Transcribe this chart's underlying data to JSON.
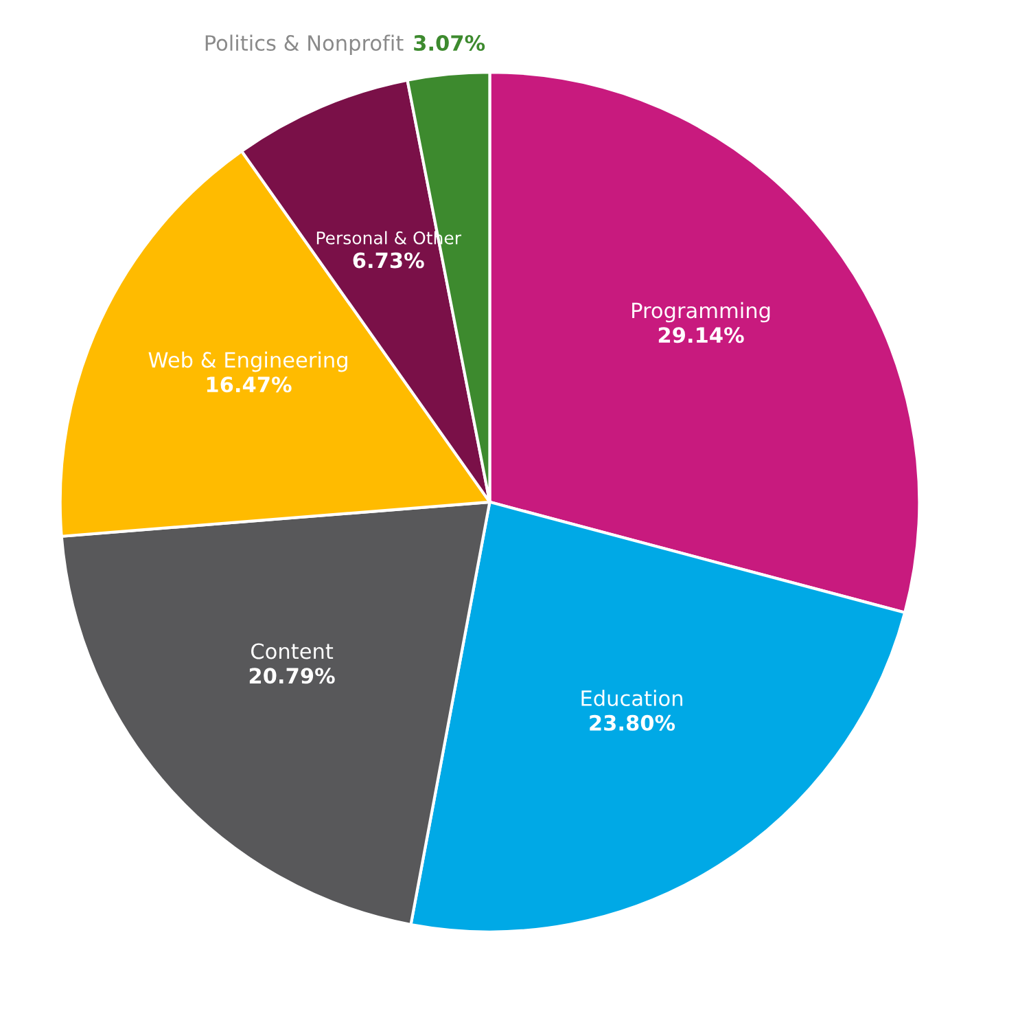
{
  "chart_data": {
    "type": "pie",
    "categories": [
      "Programming",
      "Education",
      "Content",
      "Web & Engineering",
      "Personal & Other",
      "Politics & Nonprofit"
    ],
    "values": [
      29.14,
      23.8,
      20.79,
      16.47,
      6.73,
      3.07
    ],
    "value_labels": [
      "29.14%",
      "23.80%",
      "20.79%",
      "16.47%",
      "6.73%",
      "3.07%"
    ],
    "colors": [
      "#c81a7e",
      "#00a9e6",
      "#58585a",
      "#ffbb00",
      "#7a1048",
      "#3d8a2e"
    ]
  }
}
